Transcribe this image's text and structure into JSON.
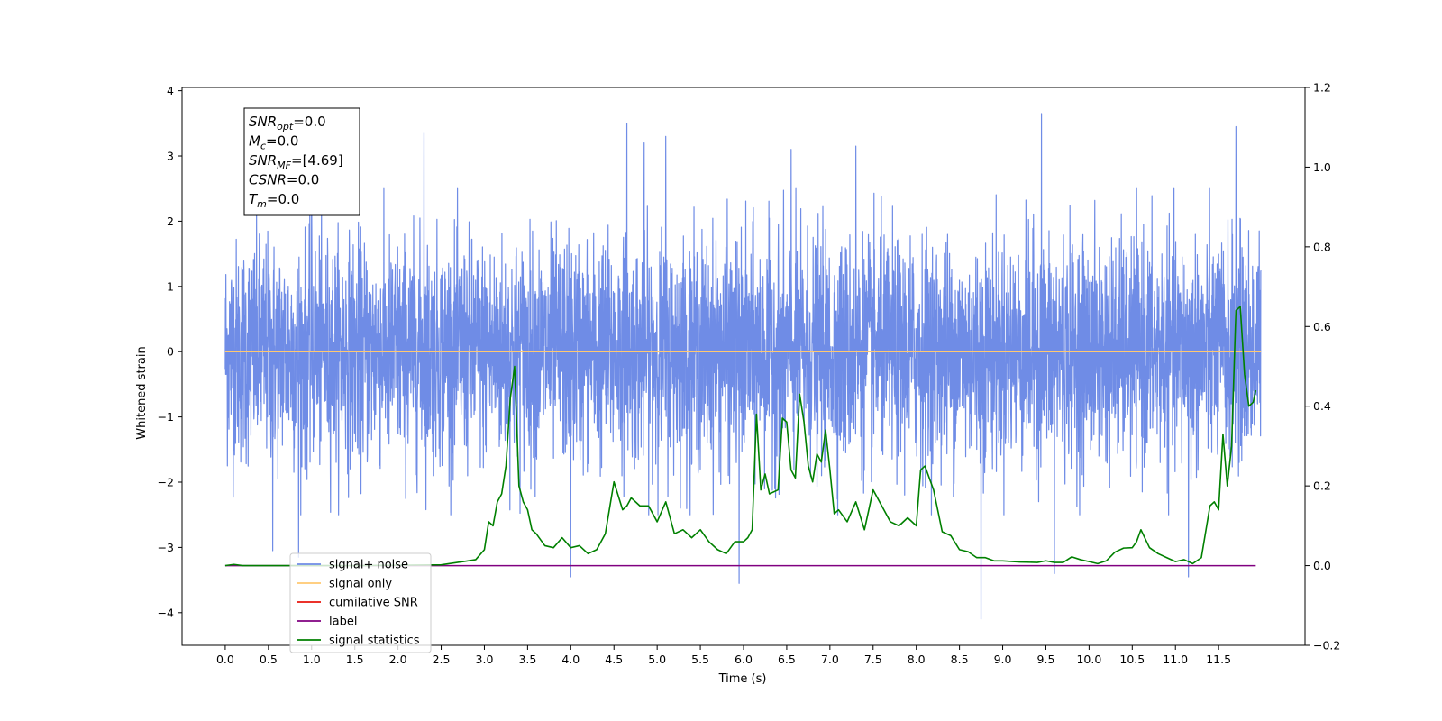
{
  "chart_data": {
    "type": "line",
    "xlabel": "Time (s)",
    "ylabel": "Whitened strain",
    "xlim": [
      -0.5,
      12.5
    ],
    "ylim": [
      -4.5,
      4.05
    ],
    "y2lim": [
      -0.2,
      1.2
    ],
    "x_ticks": [
      0.0,
      0.5,
      1.0,
      1.5,
      2.0,
      2.5,
      3.0,
      3.5,
      4.0,
      4.5,
      5.0,
      5.5,
      6.0,
      6.5,
      7.0,
      7.5,
      8.0,
      8.5,
      9.0,
      9.5,
      10.0,
      10.5,
      11.0,
      11.5
    ],
    "x_tick_labels": [
      "0.0",
      "0.5",
      "1.0",
      "1.5",
      "2.0",
      "2.5",
      "3.0",
      "3.5",
      "4.0",
      "4.5",
      "5.0",
      "5.5",
      "6.0",
      "6.5",
      "7.0",
      "7.5",
      "8.0",
      "8.5",
      "9.0",
      "9.5",
      "10.0",
      "10.5",
      "11.0",
      "11.5"
    ],
    "y_ticks": [
      4,
      3,
      2,
      1,
      0,
      -1,
      -2,
      -3,
      -4
    ],
    "y_tick_labels": [
      "4",
      "3",
      "2",
      "1",
      "0",
      "−1",
      "−2",
      "−3",
      "−4"
    ],
    "y2_ticks": [
      1.2,
      1.0,
      0.8,
      0.6,
      0.4,
      0.2,
      0.0,
      -0.2
    ],
    "y2_tick_labels": [
      "1.2",
      "1.0",
      "0.8",
      "0.6",
      "0.4",
      "0.2",
      "0.0",
      "−0.2"
    ],
    "legend": {
      "placement": "lower-left",
      "entries": [
        {
          "label": "signal+ noise",
          "color": "#6f8ce6"
        },
        {
          "label": "signal only",
          "color": "#ffc870"
        },
        {
          "label": "cumilative SNR",
          "color": "#e8140d"
        },
        {
          "label": "label",
          "color": "#800080"
        },
        {
          "label": "signal statistics",
          "color": "#008000"
        }
      ]
    },
    "info_box": [
      {
        "name": "SNR",
        "sub": "opt",
        "value": "=0.0"
      },
      {
        "name": "M",
        "sub": "c",
        "value": "=0.0"
      },
      {
        "name": "SNR",
        "sub": "MF",
        "value": "=[4.69]"
      },
      {
        "name": "CSNR",
        "sub": "",
        "value": "=0.0"
      },
      {
        "name": "T",
        "sub": "m",
        "value": "=0.0"
      }
    ],
    "series": [
      {
        "name": "signal+ noise",
        "axis": "left",
        "color": "#6f8ce6",
        "x_range": [
          0.0,
          11.99
        ],
        "noise_std": 0.85,
        "spikes": [
          {
            "x": 0.55,
            "y": -3.05
          },
          {
            "x": 0.85,
            "y": -3.15
          },
          {
            "x": 1.0,
            "y": 2.6
          },
          {
            "x": 2.3,
            "y": 3.35
          },
          {
            "x": 4.0,
            "y": -3.45
          },
          {
            "x": 4.65,
            "y": 3.5
          },
          {
            "x": 4.85,
            "y": 3.2
          },
          {
            "x": 5.1,
            "y": 3.3
          },
          {
            "x": 5.95,
            "y": -3.55
          },
          {
            "x": 6.55,
            "y": 3.1
          },
          {
            "x": 7.3,
            "y": 3.15
          },
          {
            "x": 8.75,
            "y": -4.1
          },
          {
            "x": 9.45,
            "y": 3.65
          },
          {
            "x": 9.6,
            "y": -3.4
          },
          {
            "x": 11.15,
            "y": -3.45
          },
          {
            "x": 11.7,
            "y": 3.45
          }
        ]
      },
      {
        "name": "signal only",
        "axis": "left",
        "color": "#ffc870",
        "x": [
          0.0,
          11.99
        ],
        "y": [
          0.0,
          0.0
        ]
      },
      {
        "name": "label",
        "axis": "right",
        "color": "#800080",
        "x": [
          0.0,
          11.93
        ],
        "y": [
          0.0,
          0.0
        ]
      },
      {
        "name": "signal statistics",
        "axis": "right",
        "color": "#008000",
        "x": [
          0.0,
          0.1,
          0.2,
          0.5,
          1.0,
          1.5,
          2.0,
          2.5,
          2.75,
          2.9,
          3.0,
          3.05,
          3.1,
          3.15,
          3.2,
          3.25,
          3.3,
          3.35,
          3.4,
          3.45,
          3.5,
          3.55,
          3.6,
          3.7,
          3.8,
          3.9,
          4.0,
          4.1,
          4.2,
          4.3,
          4.4,
          4.5,
          4.6,
          4.65,
          4.7,
          4.8,
          4.9,
          5.0,
          5.1,
          5.2,
          5.3,
          5.4,
          5.5,
          5.6,
          5.7,
          5.8,
          5.9,
          6.0,
          6.05,
          6.1,
          6.15,
          6.2,
          6.25,
          6.3,
          6.4,
          6.45,
          6.5,
          6.55,
          6.6,
          6.65,
          6.7,
          6.75,
          6.8,
          6.85,
          6.9,
          6.95,
          7.0,
          7.05,
          7.1,
          7.2,
          7.3,
          7.4,
          7.5,
          7.6,
          7.7,
          7.8,
          7.9,
          8.0,
          8.05,
          8.1,
          8.2,
          8.3,
          8.4,
          8.5,
          8.6,
          8.7,
          8.8,
          8.9,
          9.0,
          9.2,
          9.4,
          9.5,
          9.6,
          9.7,
          9.8,
          9.9,
          10.0,
          10.1,
          10.2,
          10.3,
          10.4,
          10.5,
          10.55,
          10.6,
          10.7,
          10.8,
          10.9,
          11.0,
          11.1,
          11.2,
          11.3,
          11.4,
          11.45,
          11.5,
          11.55,
          11.6,
          11.65,
          11.7,
          11.75,
          11.8,
          11.85,
          11.9,
          11.93
        ],
        "y": [
          0.0,
          0.003,
          0.0,
          0.0,
          0.0,
          0.0,
          0.001,
          0.002,
          0.01,
          0.015,
          0.04,
          0.11,
          0.1,
          0.16,
          0.18,
          0.25,
          0.42,
          0.5,
          0.2,
          0.16,
          0.14,
          0.09,
          0.08,
          0.05,
          0.045,
          0.07,
          0.045,
          0.05,
          0.03,
          0.04,
          0.08,
          0.21,
          0.14,
          0.15,
          0.17,
          0.15,
          0.15,
          0.11,
          0.16,
          0.08,
          0.09,
          0.07,
          0.09,
          0.06,
          0.04,
          0.03,
          0.06,
          0.06,
          0.07,
          0.09,
          0.38,
          0.19,
          0.23,
          0.18,
          0.19,
          0.37,
          0.36,
          0.24,
          0.22,
          0.43,
          0.36,
          0.25,
          0.21,
          0.28,
          0.26,
          0.34,
          0.24,
          0.13,
          0.14,
          0.11,
          0.16,
          0.09,
          0.19,
          0.15,
          0.11,
          0.1,
          0.12,
          0.1,
          0.24,
          0.25,
          0.19,
          0.085,
          0.075,
          0.04,
          0.035,
          0.02,
          0.02,
          0.012,
          0.012,
          0.009,
          0.008,
          0.012,
          0.008,
          0.008,
          0.022,
          0.015,
          0.01,
          0.005,
          0.012,
          0.034,
          0.044,
          0.045,
          0.06,
          0.09,
          0.045,
          0.03,
          0.02,
          0.01,
          0.015,
          0.005,
          0.02,
          0.15,
          0.16,
          0.14,
          0.33,
          0.2,
          0.3,
          0.64,
          0.65,
          0.48,
          0.4,
          0.41,
          0.44
        ]
      }
    ]
  }
}
